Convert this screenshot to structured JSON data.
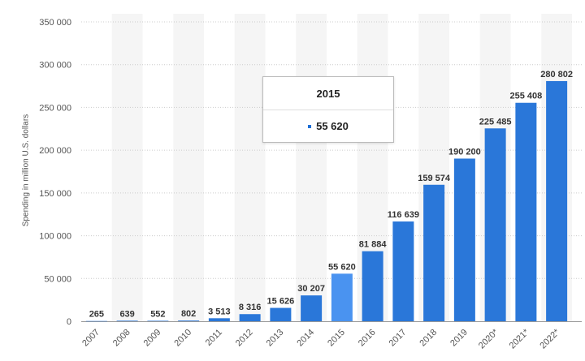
{
  "chart_data": {
    "type": "bar",
    "categories": [
      "2007",
      "2008",
      "2009",
      "2010",
      "2011",
      "2012",
      "2013",
      "2014",
      "2015",
      "2016",
      "2017",
      "2018",
      "2019",
      "2020*",
      "2021*",
      "2022*"
    ],
    "values": [
      265,
      639,
      552,
      802,
      3513,
      8316,
      15626,
      30207,
      55620,
      81884,
      116639,
      159574,
      190200,
      225485,
      255408,
      280802
    ],
    "value_labels": [
      "265",
      "639",
      "552",
      "802",
      "3 513",
      "8 316",
      "15 626",
      "30 207",
      "55 620",
      "81 884",
      "116 639",
      "159 574",
      "190 200",
      "225 485",
      "255 408",
      "280 802"
    ],
    "ylabel": "Spending in million U.S. dollars",
    "xlabel": "",
    "ylim": [
      0,
      350000
    ],
    "yticks": [
      0,
      50000,
      100000,
      150000,
      200000,
      250000,
      300000,
      350000
    ],
    "ytick_labels": [
      "0",
      "50 000",
      "100 000",
      "150 000",
      "200 000",
      "250 000",
      "300 000",
      "350 000"
    ],
    "grid": true,
    "highlighted_category": "2015",
    "colors": {
      "bar": "#2a77d9",
      "bar_highlight": "#4a93f0",
      "alternate_band": "#f5f5f5",
      "gridline": "#cccccc",
      "tick_text": "#555555",
      "value_text": "#333333"
    }
  },
  "tooltip": {
    "title": "2015",
    "value": "55 620"
  }
}
